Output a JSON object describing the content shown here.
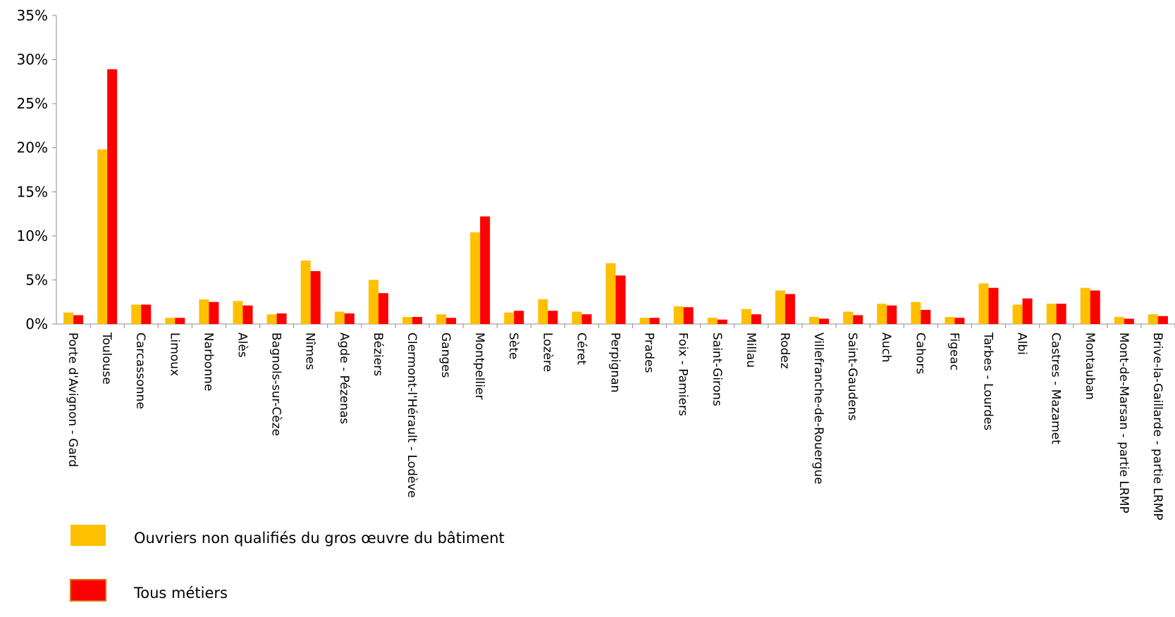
{
  "chart_data": {
    "type": "bar",
    "title": "",
    "xlabel": "",
    "ylabel": "",
    "ylim": [
      0,
      0.35
    ],
    "y_ticks": [
      {
        "value": 0,
        "label": "0%"
      },
      {
        "value": 0.05,
        "label": "5%"
      },
      {
        "value": 0.1,
        "label": "10%"
      },
      {
        "value": 0.15,
        "label": "15%"
      },
      {
        "value": 0.2,
        "label": "20%"
      },
      {
        "value": 0.25,
        "label": "25%"
      },
      {
        "value": 0.3,
        "label": "30%"
      },
      {
        "value": 0.35,
        "label": "35%"
      }
    ],
    "grid": false,
    "legend_position": "bottom-left",
    "categories": [
      "Porte d'Avignon - Gard",
      "Toulouse",
      "Carcassonne",
      "Limoux",
      "Narbonne",
      "Alès",
      "Bagnols-sur-Cèze",
      "Nîmes",
      "Agde - Pézenas",
      "Béziers",
      "Clermont-l'Hérault - Lodève",
      "Ganges",
      "Montpellier",
      "Sète",
      "Lozère",
      "Céret",
      "Perpignan",
      "Prades",
      "Foix - Pamiers",
      "Saint-Girons",
      "Millau",
      "Rodez",
      "Villefranche-de-Rouergue",
      "Saint-Gaudens",
      "Auch",
      "Cahors",
      "Figeac",
      "Tarbes - Lourdes",
      "Albi",
      "Castres - Mazamet",
      "Montauban",
      "Mont-de-Marsan - partie LRMP",
      "Brive-la-Gaillarde - partie LRMP"
    ],
    "series": [
      {
        "name": "Ouvriers non qualifiés du gros œuvre du bâtiment",
        "color": "#FFC000",
        "values": [
          0.013,
          0.198,
          0.022,
          0.007,
          0.028,
          0.026,
          0.011,
          0.072,
          0.014,
          0.05,
          0.008,
          0.011,
          0.104,
          0.013,
          0.028,
          0.014,
          0.069,
          0.007,
          0.02,
          0.007,
          0.017,
          0.038,
          0.008,
          0.014,
          0.023,
          0.025,
          0.008,
          0.046,
          0.022,
          0.023,
          0.041,
          0.008,
          0.011
        ]
      },
      {
        "name": "Tous métiers",
        "color": "#FF0000",
        "values": [
          0.01,
          0.289,
          0.022,
          0.007,
          0.025,
          0.021,
          0.012,
          0.06,
          0.012,
          0.035,
          0.008,
          0.007,
          0.122,
          0.015,
          0.015,
          0.011,
          0.055,
          0.007,
          0.019,
          0.005,
          0.011,
          0.034,
          0.006,
          0.01,
          0.021,
          0.016,
          0.007,
          0.041,
          0.029,
          0.023,
          0.038,
          0.006,
          0.009
        ]
      }
    ]
  }
}
